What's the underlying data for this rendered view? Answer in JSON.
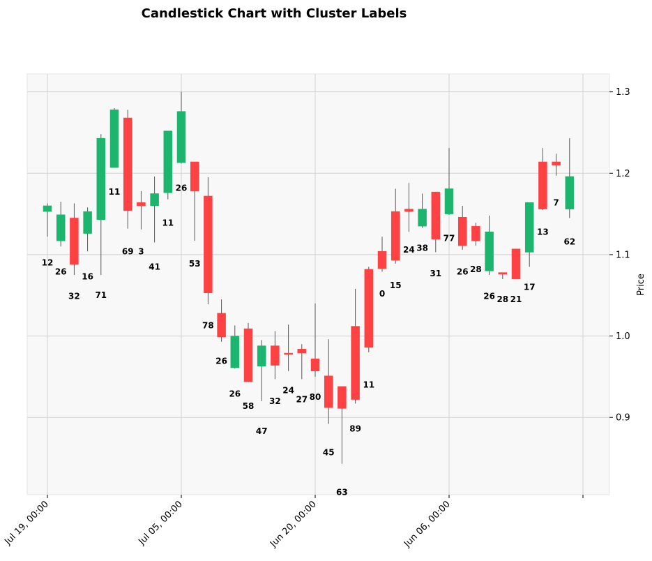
{
  "chart_data": {
    "type": "candlestick",
    "title": "Candlestick Chart with Cluster Labels",
    "ylabel": "Price",
    "ylim": [
      0.805,
      1.322
    ],
    "yticks": [
      0.9,
      1.0,
      1.1,
      1.2,
      1.3
    ],
    "ytick_labels": [
      "0.9",
      "1.0",
      "1.1",
      "1.2",
      "1.3"
    ],
    "xtick_labels": [
      "Jul 19, 00:00",
      "Jul 05, 00:00",
      "Jun 20, 00:00",
      "Jun 06, 00:00",
      ""
    ],
    "xtick_index": [
      0,
      10,
      20,
      30,
      40
    ],
    "grid": true,
    "colors": {
      "up": "#1bb56e",
      "down": "#fe4143",
      "wick": "#555555",
      "plot_bg": "#f8f8f8",
      "grid": "#d0d0d0"
    },
    "candles": [
      {
        "open": 1.153,
        "close": 1.16,
        "high": 1.163,
        "low": 1.122,
        "label": "12",
        "label_y": 1.09
      },
      {
        "open": 1.117,
        "close": 1.149,
        "high": 1.165,
        "low": 1.11,
        "label": "26",
        "label_y": 1.079
      },
      {
        "open": 1.145,
        "close": 1.088,
        "high": 1.163,
        "low": 1.075,
        "label": "32",
        "label_y": 1.049
      },
      {
        "open": 1.126,
        "close": 1.153,
        "high": 1.158,
        "low": 1.104,
        "label": "16",
        "label_y": 1.073
      },
      {
        "open": 1.143,
        "close": 1.243,
        "high": 1.248,
        "low": 1.075,
        "label": "71",
        "label_y": 1.05
      },
      {
        "open": 1.207,
        "close": 1.278,
        "high": 1.28,
        "low": 1.207,
        "label": "11",
        "label_y": 1.177
      },
      {
        "open": 1.268,
        "close": 1.154,
        "high": 1.278,
        "low": 1.132,
        "label": "69",
        "label_y": 1.104
      },
      {
        "open": 1.164,
        "close": 1.16,
        "high": 1.178,
        "low": 1.131,
        "label": "3",
        "label_y": 1.104
      },
      {
        "open": 1.16,
        "close": 1.175,
        "high": 1.196,
        "low": 1.115,
        "label": "41",
        "label_y": 1.085
      },
      {
        "open": 1.176,
        "close": 1.252,
        "high": 1.252,
        "low": 1.168,
        "label": "11",
        "label_y": 1.139
      },
      {
        "open": 1.213,
        "close": 1.276,
        "high": 1.3,
        "low": 1.212,
        "label": "26",
        "label_y": 1.182
      },
      {
        "open": 1.214,
        "close": 1.178,
        "high": 1.214,
        "low": 1.117,
        "label": "53",
        "label_y": 1.089
      },
      {
        "open": 1.172,
        "close": 1.053,
        "high": 1.195,
        "low": 1.039,
        "label": "78",
        "label_y": 1.013
      },
      {
        "open": 1.028,
        "close": 0.999,
        "high": 1.045,
        "low": 0.993,
        "label": "26",
        "label_y": 0.969
      },
      {
        "open": 0.961,
        "close": 1.0,
        "high": 1.013,
        "low": 0.96,
        "label": "26",
        "label_y": 0.929
      },
      {
        "open": 1.009,
        "close": 0.944,
        "high": 1.016,
        "low": 0.943,
        "label": "58",
        "label_y": 0.914
      },
      {
        "open": 0.963,
        "close": 0.988,
        "high": 0.995,
        "low": 0.92,
        "label": "47",
        "label_y": 0.883
      },
      {
        "open": 0.988,
        "close": 0.964,
        "high": 1.006,
        "low": 0.947,
        "label": "32",
        "label_y": 0.92
      },
      {
        "open": 0.979,
        "close": 0.978,
        "high": 1.014,
        "low": 0.957,
        "label": "24",
        "label_y": 0.933
      },
      {
        "open": 0.984,
        "close": 0.979,
        "high": 0.99,
        "low": 0.947,
        "label": "27",
        "label_y": 0.922
      },
      {
        "open": 0.972,
        "close": 0.957,
        "high": 1.04,
        "low": 0.95,
        "label": "80",
        "label_y": 0.925
      },
      {
        "open": 0.951,
        "close": 0.912,
        "high": 0.996,
        "low": 0.892,
        "label": "45",
        "label_y": 0.857
      },
      {
        "open": 0.938,
        "close": 0.911,
        "high": 0.938,
        "low": 0.843,
        "label": "63",
        "label_y": 0.808
      },
      {
        "open": 1.012,
        "close": 0.922,
        "high": 1.058,
        "low": 0.917,
        "label": "89",
        "label_y": 0.886
      },
      {
        "open": 1.082,
        "close": 0.986,
        "high": 1.085,
        "low": 0.98,
        "label": "11",
        "label_y": 0.94
      },
      {
        "open": 1.104,
        "close": 1.083,
        "high": 1.122,
        "low": 1.079,
        "label": "0",
        "label_y": 1.052
      },
      {
        "open": 1.153,
        "close": 1.093,
        "high": 1.181,
        "low": 1.089,
        "label": "15",
        "label_y": 1.062
      },
      {
        "open": 1.156,
        "close": 1.153,
        "high": 1.188,
        "low": 1.128,
        "label": "24",
        "label_y": 1.106
      },
      {
        "open": 1.135,
        "close": 1.156,
        "high": 1.175,
        "low": 1.133,
        "label": "38",
        "label_y": 1.108
      },
      {
        "open": 1.177,
        "close": 1.119,
        "high": 1.177,
        "low": 1.103,
        "label": "31",
        "label_y": 1.077
      },
      {
        "open": 1.15,
        "close": 1.181,
        "high": 1.231,
        "low": 1.149,
        "label": "77",
        "label_y": 1.12
      },
      {
        "open": 1.146,
        "close": 1.111,
        "high": 1.16,
        "low": 1.106,
        "label": "26",
        "label_y": 1.079
      },
      {
        "open": 1.135,
        "close": 1.117,
        "high": 1.139,
        "low": 1.111,
        "label": "28",
        "label_y": 1.082
      },
      {
        "open": 1.08,
        "close": 1.128,
        "high": 1.148,
        "low": 1.075,
        "label": "26",
        "label_y": 1.049
      },
      {
        "open": 1.078,
        "close": 1.076,
        "high": 1.078,
        "low": 1.07,
        "label": "28",
        "label_y": 1.045
      },
      {
        "open": 1.107,
        "close": 1.07,
        "high": 1.107,
        "low": 1.07,
        "label": "21",
        "label_y": 1.045
      },
      {
        "open": 1.103,
        "close": 1.164,
        "high": 1.164,
        "low": 1.085,
        "label": "17",
        "label_y": 1.06
      },
      {
        "open": 1.214,
        "close": 1.156,
        "high": 1.231,
        "low": 1.155,
        "label": "13",
        "label_y": 1.128
      },
      {
        "open": 1.214,
        "close": 1.21,
        "high": 1.224,
        "low": 1.197,
        "label": "7",
        "label_y": 1.164
      },
      {
        "open": 1.156,
        "close": 1.196,
        "high": 1.243,
        "low": 1.145,
        "label": "62",
        "label_y": 1.116
      }
    ]
  }
}
